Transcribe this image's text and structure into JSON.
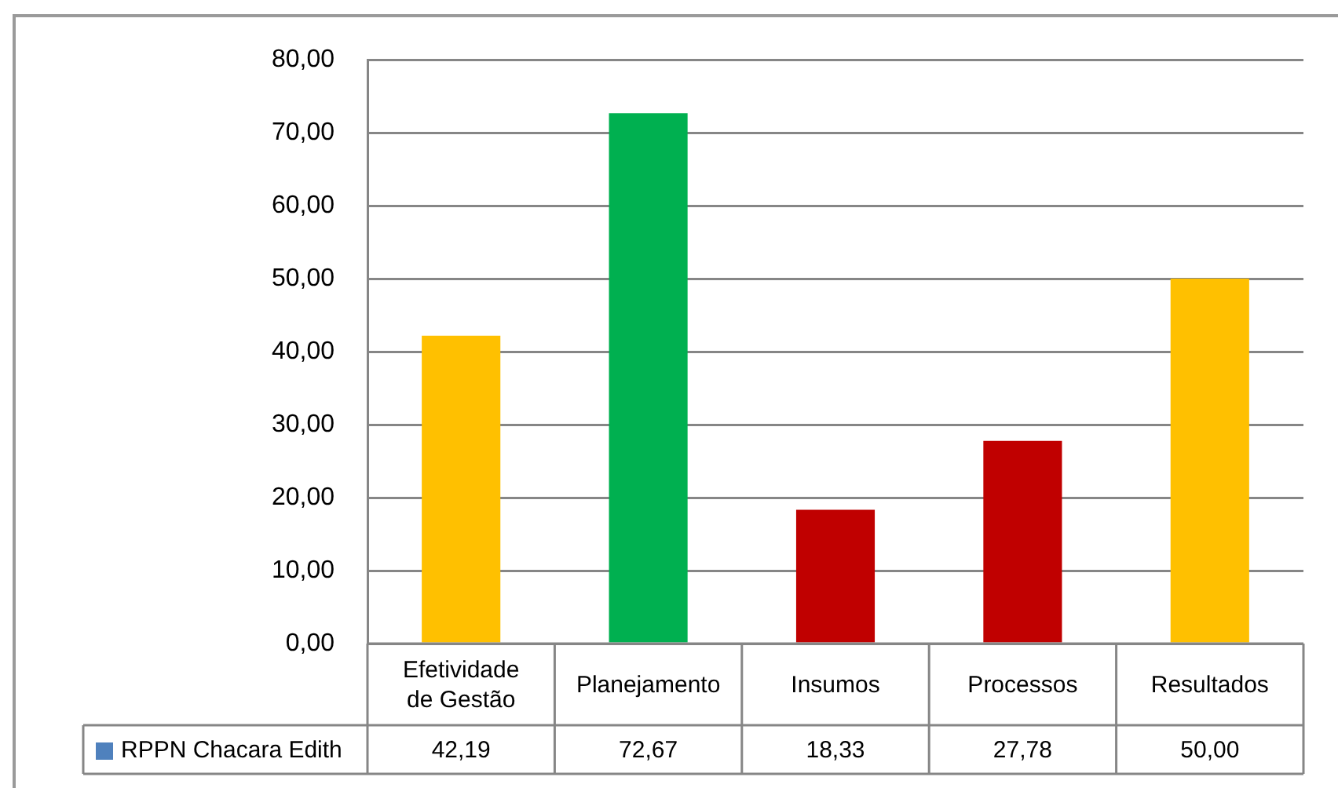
{
  "chart_data": {
    "type": "bar",
    "categories": [
      "Efetividade de Gestão",
      "Planejamento",
      "Insumos",
      "Processos",
      "Resultados"
    ],
    "series": [
      {
        "name": "RPPN Chacara Edith",
        "color": "#4f81bd",
        "colors": [
          "#ffc000",
          "#00b050",
          "#c00000",
          "#c00000",
          "#ffc000"
        ],
        "values": [
          42.19,
          72.67,
          18.33,
          27.78,
          50.0
        ],
        "value_labels": [
          "42,19",
          "72,67",
          "18,33",
          "27,78",
          "50,00"
        ]
      }
    ],
    "ylim": [
      0,
      80
    ],
    "yticks": [
      {
        "value": 0,
        "label": "0,00"
      },
      {
        "value": 10,
        "label": "10,00"
      },
      {
        "value": 20,
        "label": "20,00"
      },
      {
        "value": 30,
        "label": "30,00"
      },
      {
        "value": 40,
        "label": "40,00"
      },
      {
        "value": 50,
        "label": "50,00"
      },
      {
        "value": 60,
        "label": "60,00"
      },
      {
        "value": 70,
        "label": "70,00"
      },
      {
        "value": 80,
        "label": "80,00"
      }
    ],
    "grid": "y",
    "legend": "bottom"
  }
}
